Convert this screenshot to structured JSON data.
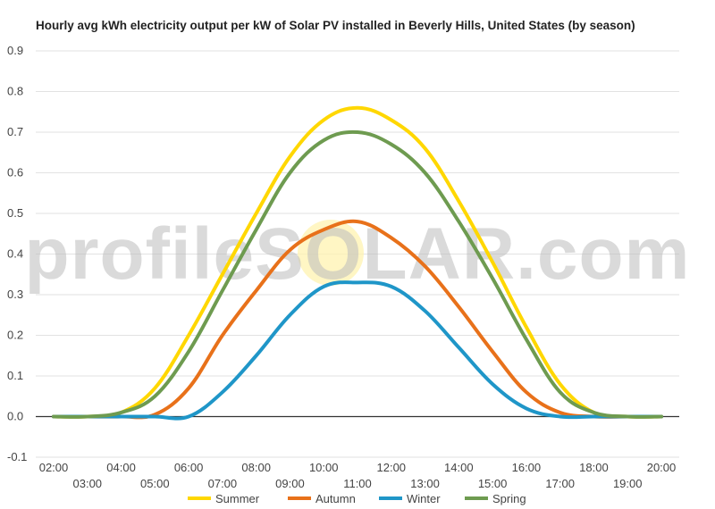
{
  "chart_data": {
    "type": "line",
    "title": "Hourly avg kWh electricity output per kW of Solar PV installed in Beverly Hills, United States (by season)",
    "xlabel": "",
    "ylabel": "",
    "ylim": [
      -0.1,
      0.9
    ],
    "yticks": [
      "-0.1",
      "0.0",
      "0.1",
      "0.2",
      "0.3",
      "0.4",
      "0.5",
      "0.6",
      "0.7",
      "0.8",
      "0.9"
    ],
    "grid": true,
    "legend_position": "bottom",
    "x": [
      "02:00",
      "03:00",
      "04:00",
      "05:00",
      "06:00",
      "07:00",
      "08:00",
      "09:00",
      "10:00",
      "11:00",
      "12:00",
      "13:00",
      "14:00",
      "15:00",
      "16:00",
      "17:00",
      "18:00",
      "19:00",
      "20:00"
    ],
    "series": [
      {
        "name": "Summer",
        "color": "#FFD700",
        "values": [
          0.0,
          0.0,
          0.01,
          0.07,
          0.2,
          0.35,
          0.5,
          0.64,
          0.73,
          0.76,
          0.73,
          0.66,
          0.53,
          0.38,
          0.22,
          0.08,
          0.01,
          0.0,
          0.0
        ]
      },
      {
        "name": "Autumn",
        "color": "#E8711A",
        "values": [
          0.0,
          0.0,
          0.0,
          0.005,
          0.07,
          0.2,
          0.31,
          0.41,
          0.46,
          0.48,
          0.44,
          0.37,
          0.27,
          0.16,
          0.06,
          0.01,
          0.0,
          0.0,
          0.0
        ]
      },
      {
        "name": "Winter",
        "color": "#1F96C8",
        "values": [
          0.0,
          0.0,
          0.0,
          0.0,
          0.0,
          0.06,
          0.15,
          0.25,
          0.32,
          0.33,
          0.32,
          0.26,
          0.17,
          0.08,
          0.02,
          0.0,
          0.0,
          0.0,
          0.0
        ]
      },
      {
        "name": "Spring",
        "color": "#6E9B50",
        "values": [
          0.0,
          0.0,
          0.01,
          0.05,
          0.16,
          0.31,
          0.46,
          0.6,
          0.68,
          0.7,
          0.67,
          0.6,
          0.48,
          0.34,
          0.19,
          0.06,
          0.01,
          0.0,
          0.0
        ]
      }
    ]
  },
  "watermark": {
    "text": "profileSOLAR.com"
  }
}
